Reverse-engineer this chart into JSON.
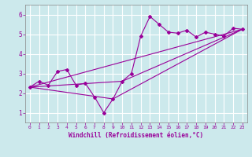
{
  "xlabel": "Windchill (Refroidissement éolien,°C)",
  "ylabel": "",
  "background_color": "#cce9ec",
  "grid_color": "#ffffff",
  "line_color": "#990099",
  "xlim": [
    -0.5,
    23.5
  ],
  "ylim": [
    0.5,
    6.5
  ],
  "xticks": [
    0,
    1,
    2,
    3,
    4,
    5,
    6,
    7,
    8,
    9,
    10,
    11,
    12,
    13,
    14,
    15,
    16,
    17,
    18,
    19,
    20,
    21,
    22,
    23
  ],
  "yticks": [
    1,
    2,
    3,
    4,
    5,
    6
  ],
  "series1_x": [
    0,
    1,
    2,
    3,
    4,
    5,
    6,
    7,
    8,
    9,
    10,
    11,
    12,
    13,
    14,
    15,
    16,
    17,
    18,
    19,
    20,
    21,
    22,
    23
  ],
  "series1_y": [
    2.3,
    2.6,
    2.4,
    3.1,
    3.2,
    2.4,
    2.5,
    1.8,
    1.0,
    1.7,
    2.6,
    3.0,
    4.9,
    5.9,
    5.5,
    5.1,
    5.05,
    5.2,
    4.85,
    5.1,
    5.0,
    4.9,
    5.3,
    5.25
  ],
  "series2_x": [
    0,
    23
  ],
  "series2_y": [
    2.3,
    5.25
  ],
  "series3_x": [
    0,
    10,
    23
  ],
  "series3_y": [
    2.3,
    2.6,
    5.25
  ],
  "series4_x": [
    0,
    9,
    23
  ],
  "series4_y": [
    2.3,
    1.7,
    5.25
  ]
}
